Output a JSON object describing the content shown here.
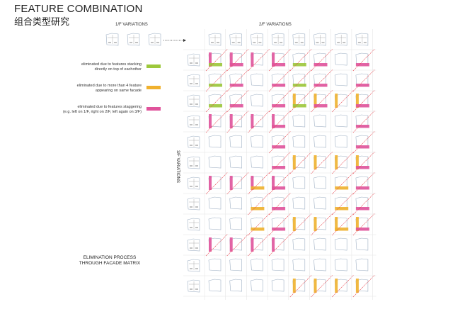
{
  "header": {
    "title": "FEATURE COMBINATION",
    "subtitle": "组合类型研究"
  },
  "labels": {
    "f1": "1/F VARIATIONS",
    "f2": "2/F VARIATIONS",
    "f3": "3/F VARIATIONS",
    "process": [
      "ELIMINATION PROCESS",
      "THROUGH FACADE MATRIX"
    ]
  },
  "colors": {
    "green": "#9dc83b",
    "orange": "#f0b12e",
    "pink": "#e0539b",
    "cross": "#e8414a",
    "sketch": "#9fb0c4",
    "grid": "#e6e6e6"
  },
  "legend": [
    {
      "lines": [
        "eliminated due to features stacking",
        "directly on top of eachother"
      ],
      "color": "green"
    },
    {
      "lines": [
        "eliminated due to more than 4 feature",
        "appearing on same facade"
      ],
      "color": "orange"
    },
    {
      "lines": [
        "eliminated due to features staggering",
        "(e.g. left on 1/F, right on 2/F, left again on 3/F)"
      ],
      "color": "pink"
    }
  ],
  "matrix": [
    [
      "pink|green|x",
      "pink|pink|x",
      "pink||x",
      "pink|pink|x",
      "|green|x",
      "|pink|x",
      "||",
      "|pink|x"
    ],
    [
      "|green|x",
      "|pink|x",
      "||",
      "|pink|x",
      "|green|x",
      "|pink|x",
      "||",
      "|pink|x"
    ],
    [
      "|green|x",
      "|pink|x",
      "||",
      "|pink|x",
      "orange|green|x",
      "orange|pink|x",
      "orange||x",
      "orange|pink|x"
    ],
    [
      "pink||x",
      "pink||x",
      "pink||x",
      "pink|pink|x",
      "||",
      "||",
      "||",
      "|pink|x"
    ],
    [
      "||",
      "||",
      "||",
      "|pink|x",
      "||",
      "||",
      "||",
      "|pink|x"
    ],
    [
      "||",
      "||",
      "||",
      "|pink|x",
      "orange||x",
      "orange||x",
      "orange||x",
      "orange|pink|x"
    ],
    [
      "pink||x",
      "pink||x",
      "pink|orange|x",
      "pink|pink|x",
      "||",
      "||",
      "|orange|x",
      "|pink|x"
    ],
    [
      "||",
      "||",
      "|orange|x",
      "|pink|x",
      "||",
      "||",
      "|orange|x",
      "|pink|x"
    ],
    [
      "||",
      "||",
      "|orange|x",
      "|pink|x",
      "orange||x",
      "orange||x",
      "orange|orange|x",
      "orange|pink|x"
    ],
    [
      "pink||x",
      "pink||x",
      "pink||x",
      "pink||x",
      "||",
      "||",
      "||",
      "||"
    ],
    [
      "||",
      "||",
      "||",
      "||",
      "||",
      "||",
      "||",
      "||"
    ],
    [
      "||",
      "||",
      "||",
      "||",
      "orange||x",
      "orange||x",
      "orange||x",
      "orange||x"
    ]
  ]
}
